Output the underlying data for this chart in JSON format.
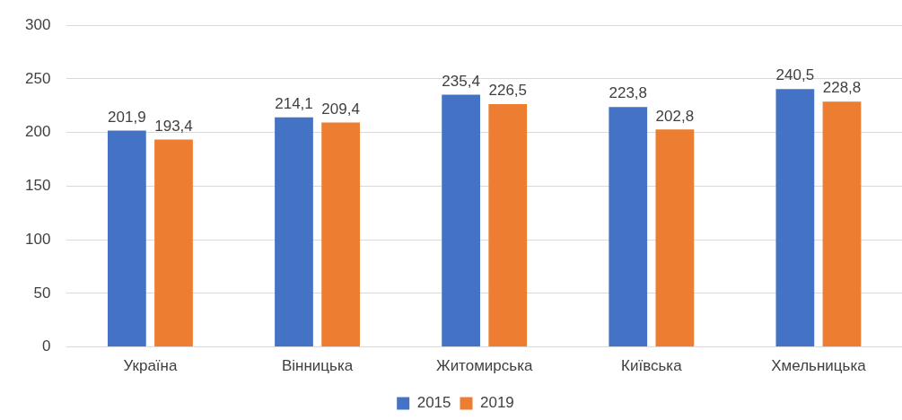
{
  "chart_data": {
    "type": "bar",
    "categories": [
      "Україна",
      "Вінницька",
      "Житомирська",
      "Київська",
      "Хмельницька"
    ],
    "series": [
      {
        "name": "2015",
        "color": "#4472c4",
        "values": [
          201.9,
          214.1,
          235.4,
          223.8,
          240.5
        ],
        "value_labels": [
          "201,9",
          "214,1",
          "235,4",
          "223,8",
          "240,5"
        ]
      },
      {
        "name": "2019",
        "color": "#ed7d31",
        "values": [
          193.4,
          209.4,
          226.5,
          202.8,
          228.8
        ],
        "value_labels": [
          "193,4",
          "209,4",
          "226,5",
          "202,8",
          "228,8"
        ]
      }
    ],
    "ylim": [
      0,
      300
    ],
    "yticks": [
      0,
      50,
      100,
      150,
      200,
      250,
      300
    ],
    "grid": "y",
    "legend": "bottom"
  }
}
